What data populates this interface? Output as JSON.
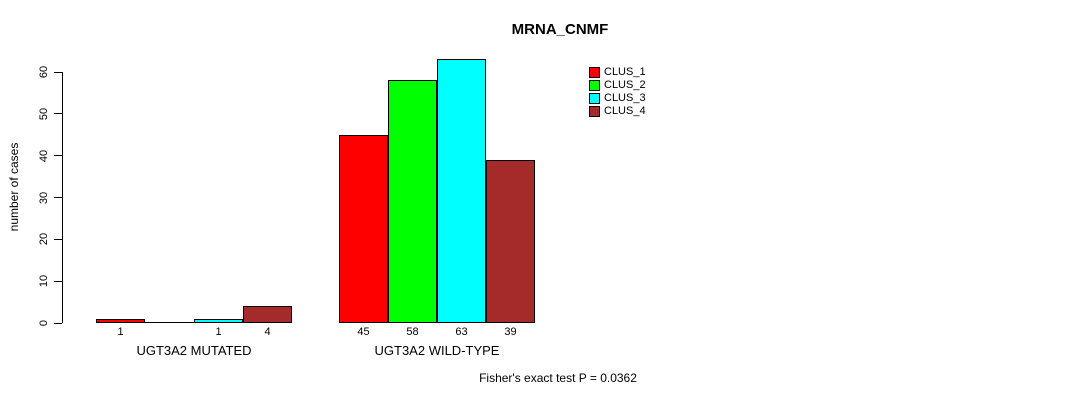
{
  "chart_data": {
    "type": "bar",
    "title": "MRNA_CNMF",
    "ylabel": "number of cases",
    "xlabel": "",
    "annotation": "Fisher's exact test P = 0.0362",
    "categories": [
      "UGT3A2 MUTATED",
      "UGT3A2 WILD-TYPE"
    ],
    "series": [
      {
        "name": "CLUS_1",
        "color": "#FF0000",
        "values": [
          1,
          45
        ]
      },
      {
        "name": "CLUS_2",
        "color": "#00FF00",
        "values": [
          0,
          58
        ]
      },
      {
        "name": "CLUS_3",
        "color": "#00FFFF",
        "values": [
          1,
          63
        ]
      },
      {
        "name": "CLUS_4",
        "color": "#A52A2A",
        "values": [
          4,
          39
        ]
      }
    ],
    "bar_labels": [
      [
        "1",
        "",
        "1",
        "4"
      ],
      [
        "45",
        "58",
        "63",
        "39"
      ]
    ],
    "y_ticks": [
      0,
      10,
      20,
      30,
      40,
      50,
      60
    ],
    "ylim": [
      0,
      60
    ],
    "grid": false,
    "legend_position": "top-right"
  }
}
